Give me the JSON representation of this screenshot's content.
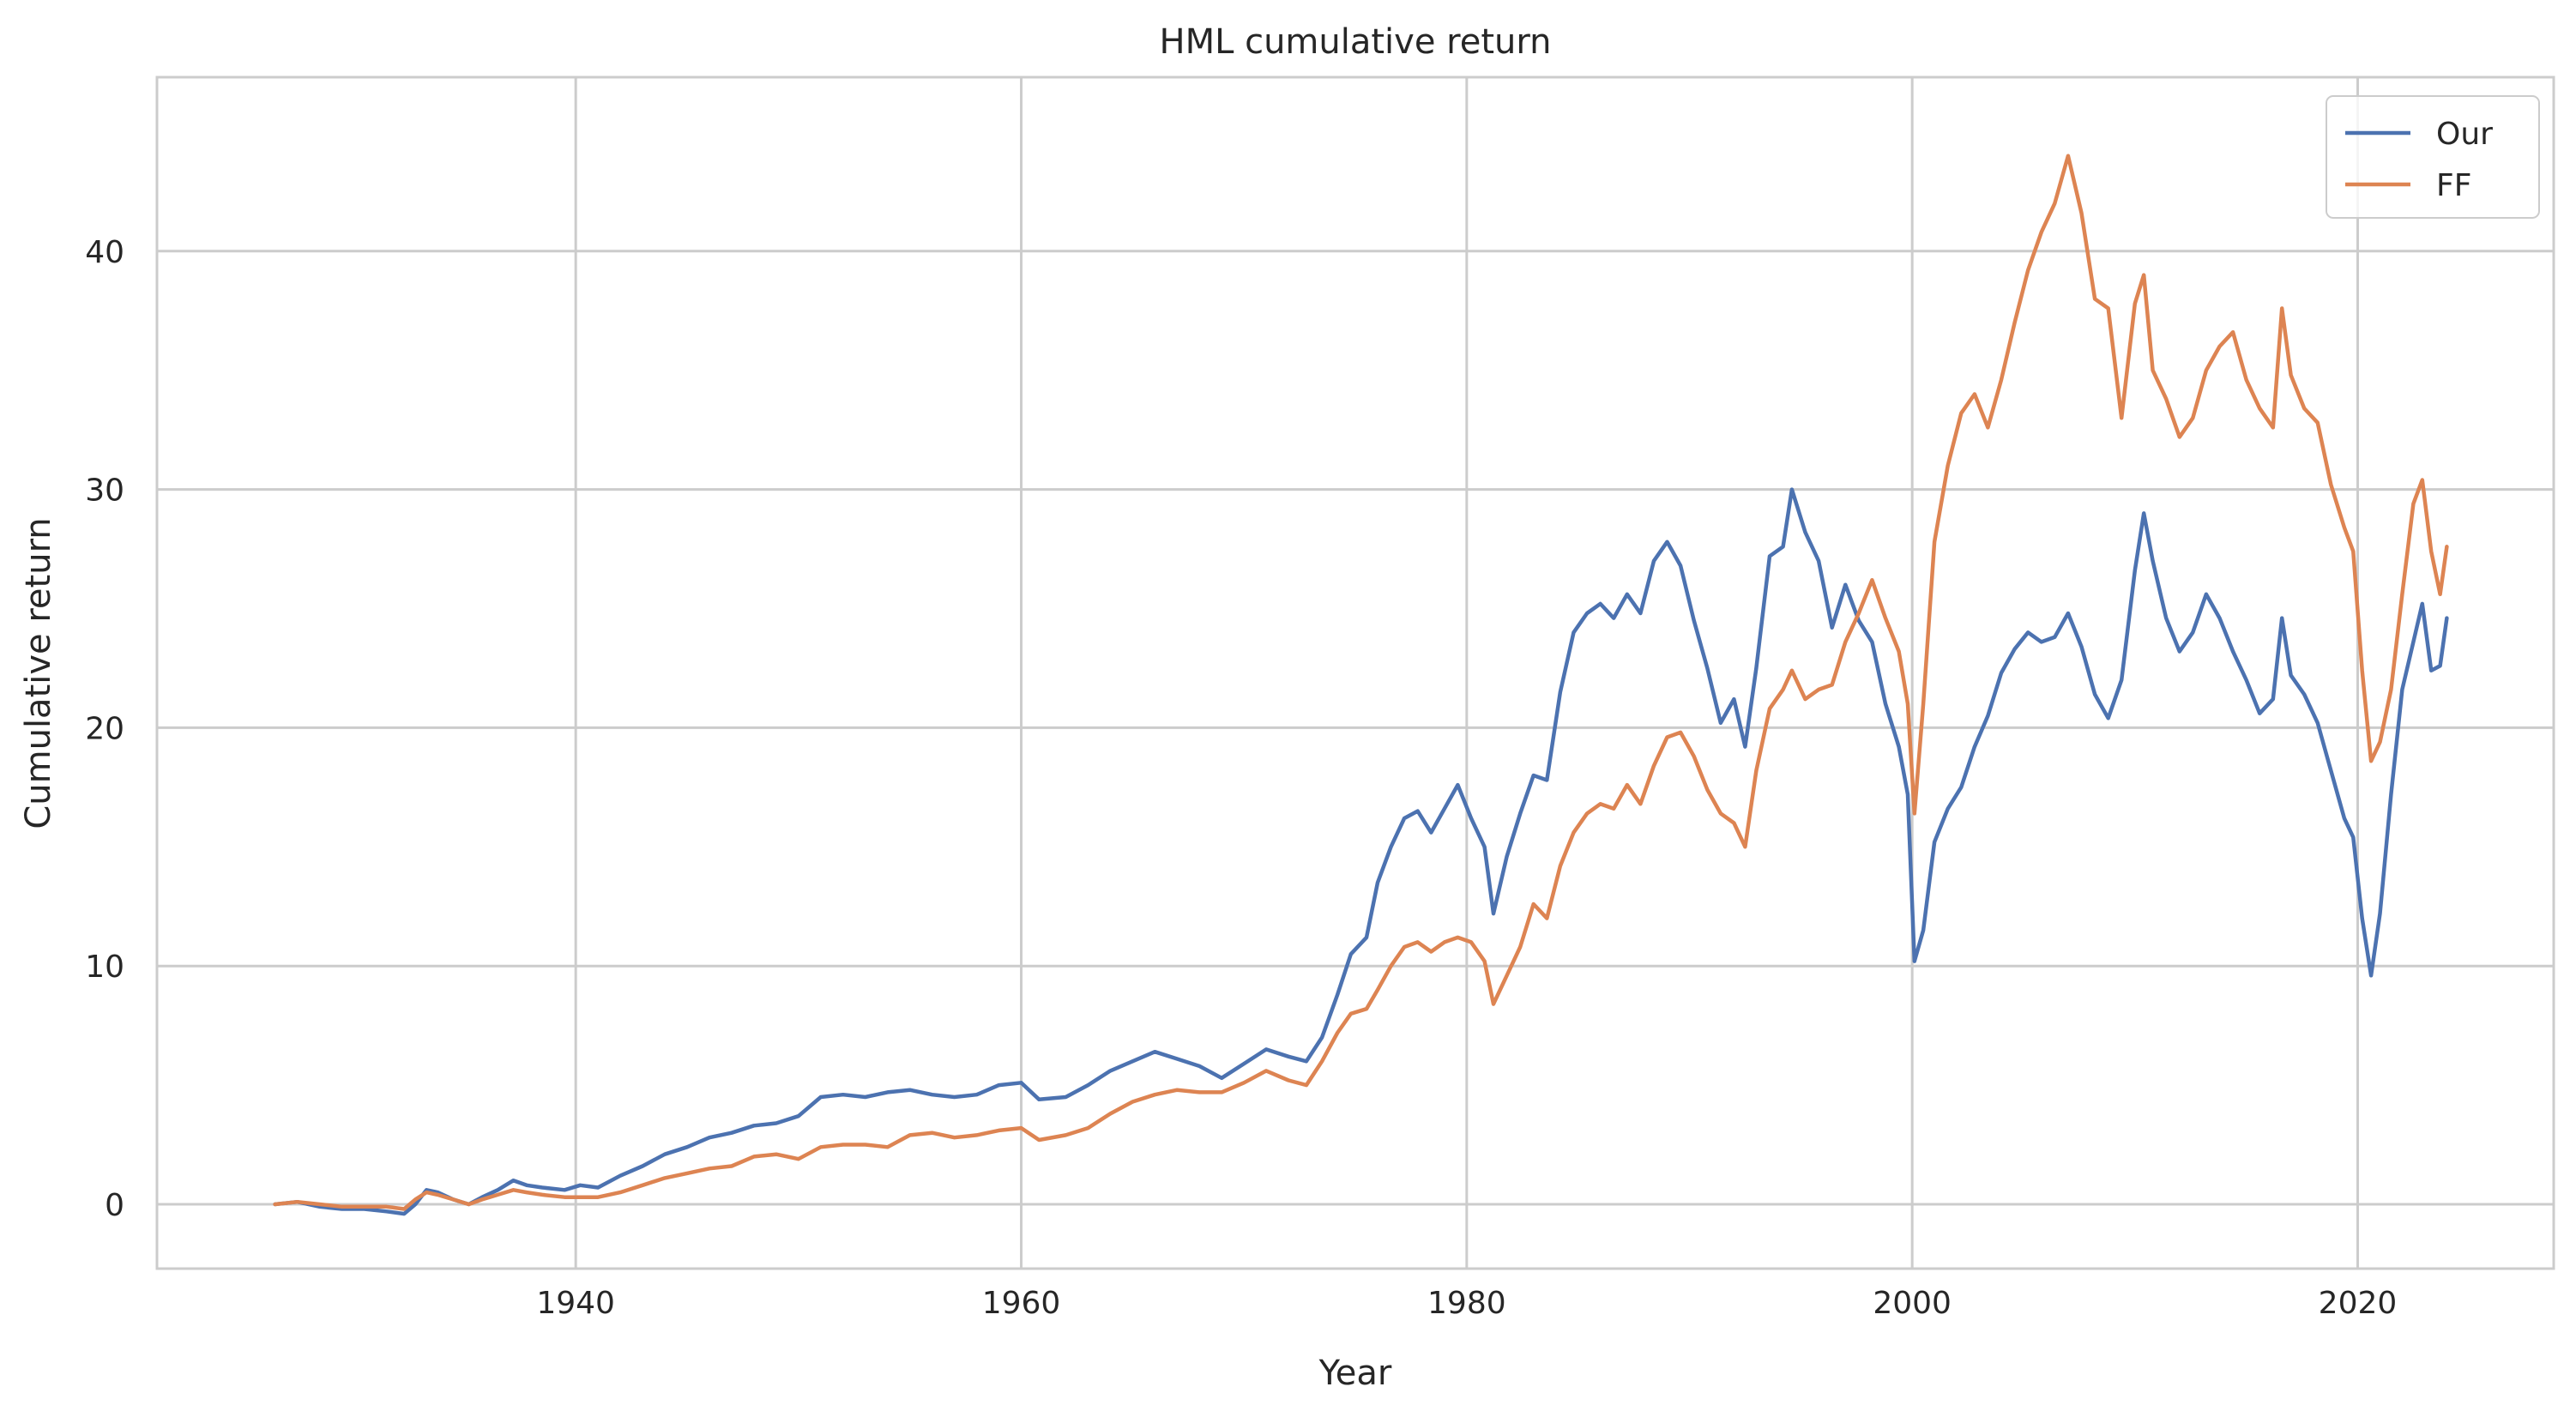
{
  "chart_data": {
    "type": "line",
    "title": "HML cumulative return",
    "xlabel": "Year",
    "ylabel": "Cumulative return",
    "xlim": [
      1921.2,
      2028.8
    ],
    "ylim": [
      -2.7,
      47.3
    ],
    "xticks": [
      1940,
      1960,
      1980,
      2000,
      2020
    ],
    "yticks": [
      0,
      10,
      20,
      30,
      40
    ],
    "grid": true,
    "legend": "top-right",
    "series": [
      {
        "name": "Our",
        "color": "#4c72b0",
        "points": [
          [
            1926.5,
            0
          ],
          [
            1927.5,
            0.1
          ],
          [
            1928.5,
            -0.1
          ],
          [
            1929.5,
            -0.2
          ],
          [
            1930.5,
            -0.2
          ],
          [
            1931.5,
            -0.3
          ],
          [
            1932.3,
            -0.4
          ],
          [
            1932.8,
            0.0
          ],
          [
            1933.3,
            0.6
          ],
          [
            1933.8,
            0.5
          ],
          [
            1934.5,
            0.2
          ],
          [
            1935.2,
            0.0
          ],
          [
            1935.8,
            0.3
          ],
          [
            1936.5,
            0.6
          ],
          [
            1937.2,
            1.0
          ],
          [
            1937.8,
            0.8
          ],
          [
            1938.5,
            0.7
          ],
          [
            1939.5,
            0.6
          ],
          [
            1940.2,
            0.8
          ],
          [
            1941.0,
            0.7
          ],
          [
            1942.0,
            1.2
          ],
          [
            1943.0,
            1.6
          ],
          [
            1944.0,
            2.1
          ],
          [
            1945.0,
            2.4
          ],
          [
            1946.0,
            2.8
          ],
          [
            1947.0,
            3.0
          ],
          [
            1948.0,
            3.3
          ],
          [
            1949.0,
            3.4
          ],
          [
            1950.0,
            3.7
          ],
          [
            1951.0,
            4.5
          ],
          [
            1952.0,
            4.6
          ],
          [
            1953.0,
            4.5
          ],
          [
            1954.0,
            4.7
          ],
          [
            1955.0,
            4.8
          ],
          [
            1956.0,
            4.6
          ],
          [
            1957.0,
            4.5
          ],
          [
            1958.0,
            4.6
          ],
          [
            1959.0,
            5.0
          ],
          [
            1960.0,
            5.1
          ],
          [
            1960.8,
            4.4
          ],
          [
            1962.0,
            4.5
          ],
          [
            1963.0,
            5.0
          ],
          [
            1964.0,
            5.6
          ],
          [
            1965.0,
            6.0
          ],
          [
            1966.0,
            6.4
          ],
          [
            1967.0,
            6.1
          ],
          [
            1968.0,
            5.8
          ],
          [
            1969.0,
            5.3
          ],
          [
            1970.0,
            5.9
          ],
          [
            1971.0,
            6.5
          ],
          [
            1972.0,
            6.2
          ],
          [
            1972.8,
            6.0
          ],
          [
            1973.5,
            7.0
          ],
          [
            1974.2,
            8.8
          ],
          [
            1974.8,
            10.5
          ],
          [
            1975.5,
            11.2
          ],
          [
            1976.0,
            13.5
          ],
          [
            1976.6,
            15.0
          ],
          [
            1977.2,
            16.2
          ],
          [
            1977.8,
            16.5
          ],
          [
            1978.4,
            15.6
          ],
          [
            1979.0,
            16.6
          ],
          [
            1979.6,
            17.6
          ],
          [
            1980.2,
            16.2
          ],
          [
            1980.8,
            15.0
          ],
          [
            1981.2,
            12.2
          ],
          [
            1981.8,
            14.6
          ],
          [
            1982.4,
            16.4
          ],
          [
            1983.0,
            18.0
          ],
          [
            1983.6,
            17.8
          ],
          [
            1984.2,
            21.5
          ],
          [
            1984.8,
            24.0
          ],
          [
            1985.4,
            24.8
          ],
          [
            1986.0,
            25.2
          ],
          [
            1986.6,
            24.6
          ],
          [
            1987.2,
            25.6
          ],
          [
            1987.8,
            24.8
          ],
          [
            1988.4,
            27.0
          ],
          [
            1989.0,
            27.8
          ],
          [
            1989.6,
            26.8
          ],
          [
            1990.2,
            24.5
          ],
          [
            1990.8,
            22.5
          ],
          [
            1991.4,
            20.2
          ],
          [
            1992.0,
            21.2
          ],
          [
            1992.5,
            19.2
          ],
          [
            1993.0,
            22.5
          ],
          [
            1993.6,
            27.2
          ],
          [
            1994.2,
            27.6
          ],
          [
            1994.6,
            30.0
          ],
          [
            1995.2,
            28.2
          ],
          [
            1995.8,
            27.0
          ],
          [
            1996.4,
            24.2
          ],
          [
            1997.0,
            26.0
          ],
          [
            1997.6,
            24.5
          ],
          [
            1998.2,
            23.6
          ],
          [
            1998.8,
            21.0
          ],
          [
            1999.4,
            19.2
          ],
          [
            1999.8,
            17.2
          ],
          [
            2000.1,
            10.2
          ],
          [
            2000.5,
            11.5
          ],
          [
            2001.0,
            15.2
          ],
          [
            2001.6,
            16.6
          ],
          [
            2002.2,
            17.5
          ],
          [
            2002.8,
            19.2
          ],
          [
            2003.4,
            20.5
          ],
          [
            2004.0,
            22.3
          ],
          [
            2004.6,
            23.3
          ],
          [
            2005.2,
            24.0
          ],
          [
            2005.8,
            23.6
          ],
          [
            2006.4,
            23.8
          ],
          [
            2007.0,
            24.8
          ],
          [
            2007.6,
            23.4
          ],
          [
            2008.2,
            21.4
          ],
          [
            2008.8,
            20.4
          ],
          [
            2009.4,
            22.0
          ],
          [
            2010.0,
            26.6
          ],
          [
            2010.4,
            29.0
          ],
          [
            2010.8,
            27.0
          ],
          [
            2011.4,
            24.6
          ],
          [
            2012.0,
            23.2
          ],
          [
            2012.6,
            24.0
          ],
          [
            2013.2,
            25.6
          ],
          [
            2013.8,
            24.6
          ],
          [
            2014.4,
            23.2
          ],
          [
            2015.0,
            22.0
          ],
          [
            2015.6,
            20.6
          ],
          [
            2016.2,
            21.2
          ],
          [
            2016.6,
            24.6
          ],
          [
            2017.0,
            22.2
          ],
          [
            2017.6,
            21.4
          ],
          [
            2018.2,
            20.2
          ],
          [
            2018.8,
            18.2
          ],
          [
            2019.4,
            16.2
          ],
          [
            2019.8,
            15.4
          ],
          [
            2020.2,
            12.0
          ],
          [
            2020.6,
            9.6
          ],
          [
            2021.0,
            12.2
          ],
          [
            2021.5,
            17.2
          ],
          [
            2022.0,
            21.6
          ],
          [
            2022.5,
            23.6
          ],
          [
            2022.9,
            25.2
          ],
          [
            2023.3,
            22.4
          ],
          [
            2023.7,
            22.6
          ],
          [
            2024.0,
            24.6
          ]
        ]
      },
      {
        "name": "FF",
        "color": "#dd8452",
        "points": [
          [
            1926.5,
            0
          ],
          [
            1927.5,
            0.1
          ],
          [
            1928.5,
            0.0
          ],
          [
            1929.5,
            -0.1
          ],
          [
            1930.5,
            -0.1
          ],
          [
            1931.5,
            -0.1
          ],
          [
            1932.3,
            -0.2
          ],
          [
            1932.8,
            0.2
          ],
          [
            1933.3,
            0.5
          ],
          [
            1933.8,
            0.4
          ],
          [
            1934.5,
            0.2
          ],
          [
            1935.2,
            0.0
          ],
          [
            1935.8,
            0.2
          ],
          [
            1936.5,
            0.4
          ],
          [
            1937.2,
            0.6
          ],
          [
            1937.8,
            0.5
          ],
          [
            1938.5,
            0.4
          ],
          [
            1939.5,
            0.3
          ],
          [
            1940.2,
            0.3
          ],
          [
            1941.0,
            0.3
          ],
          [
            1942.0,
            0.5
          ],
          [
            1943.0,
            0.8
          ],
          [
            1944.0,
            1.1
          ],
          [
            1945.0,
            1.3
          ],
          [
            1946.0,
            1.5
          ],
          [
            1947.0,
            1.6
          ],
          [
            1948.0,
            2.0
          ],
          [
            1949.0,
            2.1
          ],
          [
            1950.0,
            1.9
          ],
          [
            1951.0,
            2.4
          ],
          [
            1952.0,
            2.5
          ],
          [
            1953.0,
            2.5
          ],
          [
            1954.0,
            2.4
          ],
          [
            1955.0,
            2.9
          ],
          [
            1956.0,
            3.0
          ],
          [
            1957.0,
            2.8
          ],
          [
            1958.0,
            2.9
          ],
          [
            1959.0,
            3.1
          ],
          [
            1960.0,
            3.2
          ],
          [
            1960.8,
            2.7
          ],
          [
            1962.0,
            2.9
          ],
          [
            1963.0,
            3.2
          ],
          [
            1964.0,
            3.8
          ],
          [
            1965.0,
            4.3
          ],
          [
            1966.0,
            4.6
          ],
          [
            1967.0,
            4.8
          ],
          [
            1968.0,
            4.7
          ],
          [
            1969.0,
            4.7
          ],
          [
            1970.0,
            5.1
          ],
          [
            1971.0,
            5.6
          ],
          [
            1972.0,
            5.2
          ],
          [
            1972.8,
            5.0
          ],
          [
            1973.5,
            6.0
          ],
          [
            1974.2,
            7.2
          ],
          [
            1974.8,
            8.0
          ],
          [
            1975.5,
            8.2
          ],
          [
            1976.0,
            9.0
          ],
          [
            1976.6,
            10.0
          ],
          [
            1977.2,
            10.8
          ],
          [
            1977.8,
            11.0
          ],
          [
            1978.4,
            10.6
          ],
          [
            1979.0,
            11.0
          ],
          [
            1979.6,
            11.2
          ],
          [
            1980.2,
            11.0
          ],
          [
            1980.8,
            10.2
          ],
          [
            1981.2,
            8.4
          ],
          [
            1981.8,
            9.6
          ],
          [
            1982.4,
            10.8
          ],
          [
            1983.0,
            12.6
          ],
          [
            1983.6,
            12.0
          ],
          [
            1984.2,
            14.2
          ],
          [
            1984.8,
            15.6
          ],
          [
            1985.4,
            16.4
          ],
          [
            1986.0,
            16.8
          ],
          [
            1986.6,
            16.6
          ],
          [
            1987.2,
            17.6
          ],
          [
            1987.8,
            16.8
          ],
          [
            1988.4,
            18.4
          ],
          [
            1989.0,
            19.6
          ],
          [
            1989.6,
            19.8
          ],
          [
            1990.2,
            18.8
          ],
          [
            1990.8,
            17.4
          ],
          [
            1991.4,
            16.4
          ],
          [
            1992.0,
            16.0
          ],
          [
            1992.5,
            15.0
          ],
          [
            1993.0,
            18.2
          ],
          [
            1993.6,
            20.8
          ],
          [
            1994.2,
            21.6
          ],
          [
            1994.6,
            22.4
          ],
          [
            1995.2,
            21.2
          ],
          [
            1995.8,
            21.6
          ],
          [
            1996.4,
            21.8
          ],
          [
            1997.0,
            23.6
          ],
          [
            1997.6,
            24.8
          ],
          [
            1998.2,
            26.2
          ],
          [
            1998.8,
            24.6
          ],
          [
            1999.4,
            23.2
          ],
          [
            1999.8,
            21.0
          ],
          [
            2000.1,
            16.4
          ],
          [
            2000.5,
            21.0
          ],
          [
            2001.0,
            27.8
          ],
          [
            2001.6,
            31.0
          ],
          [
            2002.2,
            33.2
          ],
          [
            2002.8,
            34.0
          ],
          [
            2003.4,
            32.6
          ],
          [
            2004.0,
            34.6
          ],
          [
            2004.6,
            37.0
          ],
          [
            2005.2,
            39.2
          ],
          [
            2005.8,
            40.8
          ],
          [
            2006.4,
            42.0
          ],
          [
            2007.0,
            44.0
          ],
          [
            2007.6,
            41.6
          ],
          [
            2008.2,
            38.0
          ],
          [
            2008.8,
            37.6
          ],
          [
            2009.4,
            33.0
          ],
          [
            2010.0,
            37.8
          ],
          [
            2010.4,
            39.0
          ],
          [
            2010.8,
            35.0
          ],
          [
            2011.4,
            33.8
          ],
          [
            2012.0,
            32.2
          ],
          [
            2012.6,
            33.0
          ],
          [
            2013.2,
            35.0
          ],
          [
            2013.8,
            36.0
          ],
          [
            2014.4,
            36.6
          ],
          [
            2015.0,
            34.6
          ],
          [
            2015.6,
            33.4
          ],
          [
            2016.2,
            32.6
          ],
          [
            2016.6,
            37.6
          ],
          [
            2017.0,
            34.8
          ],
          [
            2017.6,
            33.4
          ],
          [
            2018.2,
            32.8
          ],
          [
            2018.8,
            30.2
          ],
          [
            2019.4,
            28.4
          ],
          [
            2019.8,
            27.4
          ],
          [
            2020.2,
            22.4
          ],
          [
            2020.6,
            18.6
          ],
          [
            2021.0,
            19.4
          ],
          [
            2021.5,
            21.6
          ],
          [
            2022.0,
            25.6
          ],
          [
            2022.5,
            29.4
          ],
          [
            2022.9,
            30.4
          ],
          [
            2023.3,
            27.4
          ],
          [
            2023.7,
            25.6
          ],
          [
            2024.0,
            27.6
          ]
        ]
      }
    ]
  }
}
